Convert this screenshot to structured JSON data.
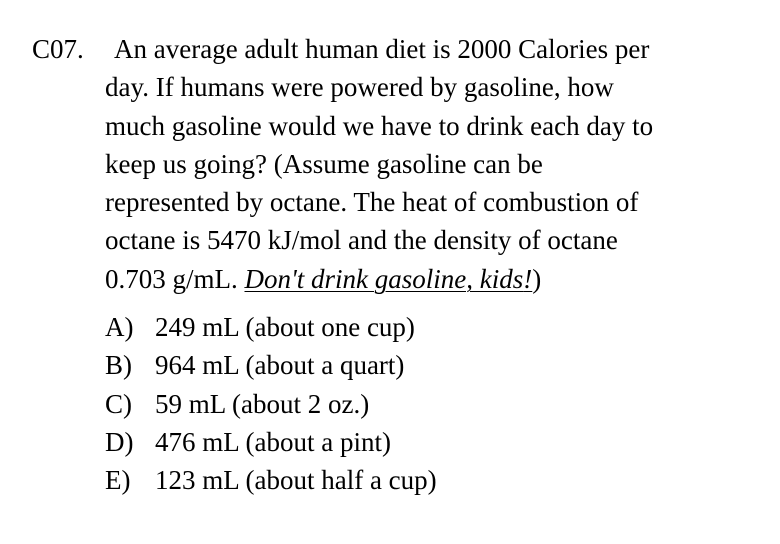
{
  "question": {
    "number": "C07.",
    "lines": [
      "An average adult human diet is 2000 Calories per",
      "day. If humans were powered by gasoline, how",
      "much gasoline would we have to drink each day to",
      "keep us going? (Assume gasoline can be",
      "represented by octane. The heat of combustion of",
      "octane is 5470 kJ/mol and the density of octane"
    ],
    "last_line_prefix": "0.703 g/mL. ",
    "warning": "Don't drink gasoline, kids",
    "warning_punct": "!",
    "last_line_suffix": ")"
  },
  "choices": [
    {
      "letter": "A)",
      "text": "249 mL (about one cup)"
    },
    {
      "letter": "B)",
      "text": "964 mL (about a quart)"
    },
    {
      "letter": "C)",
      "text": "59 mL (about 2 oz.)"
    },
    {
      "letter": "D)",
      "text": "476 mL (about a pint)"
    },
    {
      "letter": "E)",
      "text": "123 mL (about half a cup)"
    }
  ]
}
